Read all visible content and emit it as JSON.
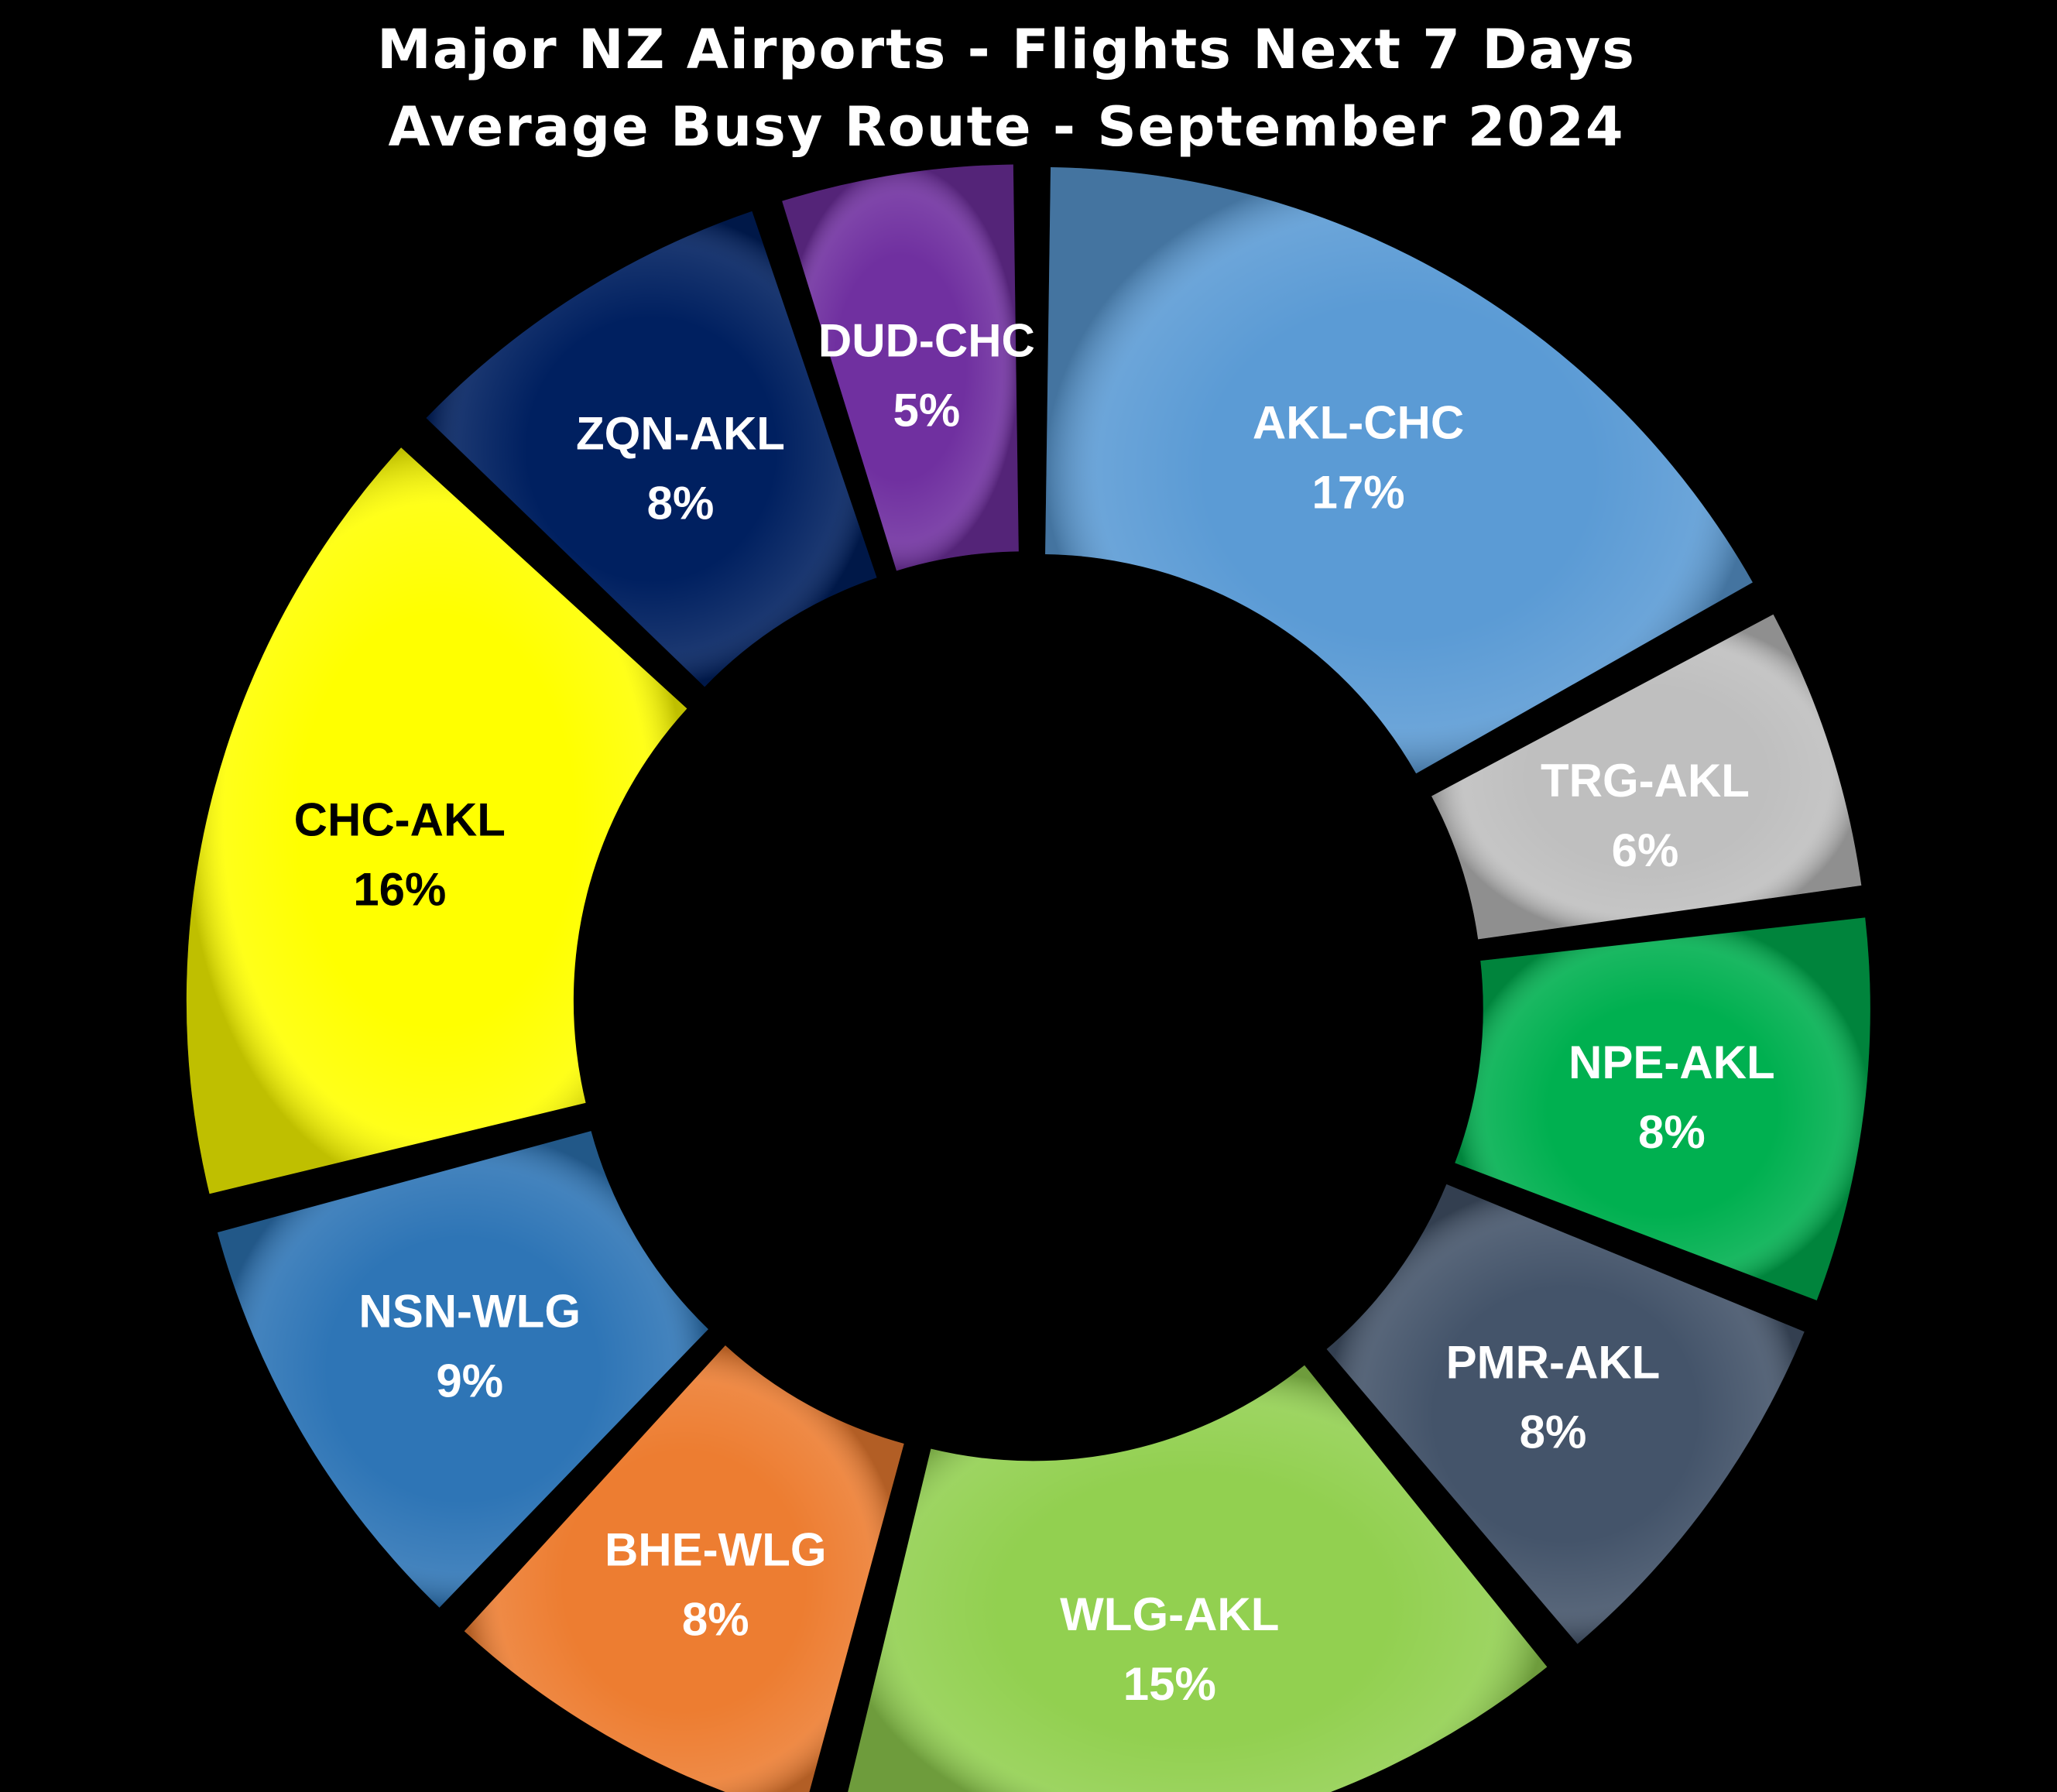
{
  "chart_data": {
    "type": "pie",
    "title": "Major NZ Airports - Flights Next 7 Days",
    "subtitle": "Average Busy Route - September 2024",
    "donut": true,
    "categories": [
      "AKL-CHC",
      "TRG-AKL",
      "NPE-AKL",
      "PMR-AKL",
      "WLG-AKL",
      "BHE-WLG",
      "NSN-WLG",
      "CHC-AKL",
      "ZQN-AKL",
      "DUD-CHC"
    ],
    "values": [
      17,
      6,
      8,
      8,
      15,
      8,
      9,
      16,
      8,
      5
    ],
    "value_labels": [
      "17%",
      "6%",
      "8%",
      "8%",
      "15%",
      "8%",
      "9%",
      "16%",
      "8%",
      "5%"
    ],
    "colors": [
      "#5b9bd5",
      "#bfbfbf",
      "#00b050",
      "#44546a",
      "#92d050",
      "#ed7d31",
      "#2e75b6",
      "#ffff00",
      "#002060",
      "#7030a0"
    ],
    "label_colors": [
      "#ffffff",
      "#ffffff",
      "#ffffff",
      "#ffffff",
      "#ffffff",
      "#ffffff",
      "#ffffff",
      "#000000",
      "#ffffff",
      "#ffffff"
    ],
    "background": "#000000"
  }
}
